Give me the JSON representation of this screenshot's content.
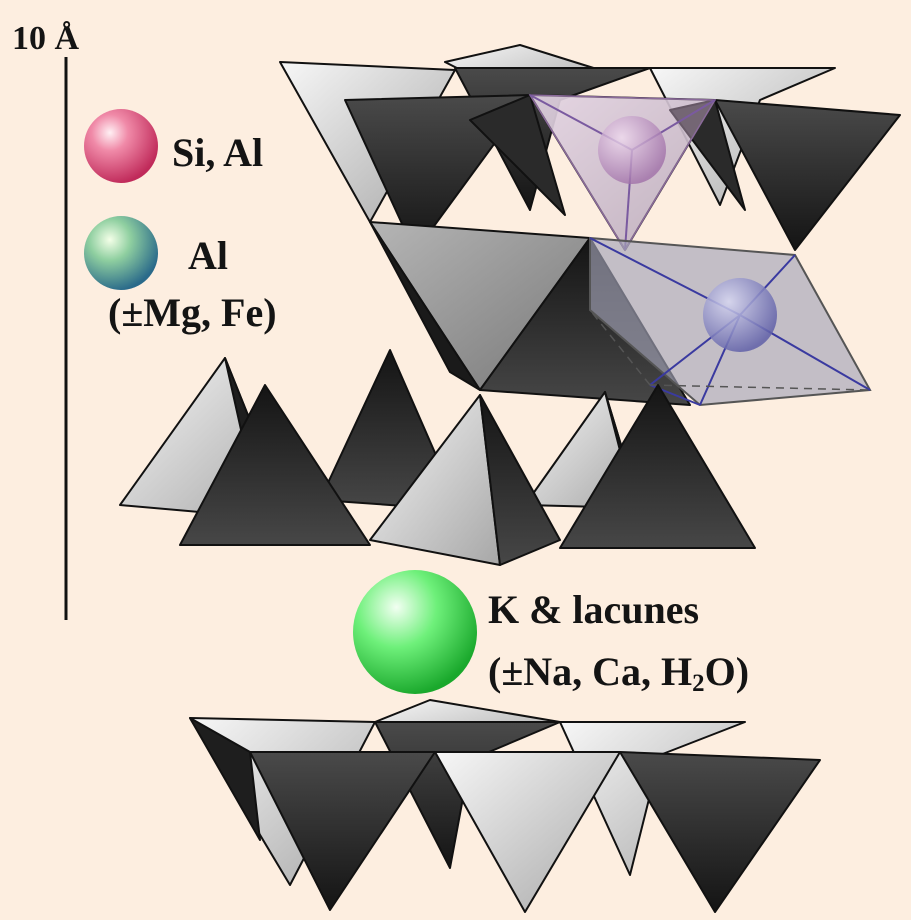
{
  "scale_bar": {
    "label": "10 Å"
  },
  "legend": {
    "si_al": {
      "label": "Si, Al",
      "color": "#e0507a"
    },
    "al": {
      "label": "Al",
      "sub_label": "(±Mg, Fe)",
      "color": "#5fae9a"
    },
    "k": {
      "label": "K & lacunes",
      "sub_label_parts": [
        "(±Na, Ca, H",
        "2",
        "O)"
      ],
      "color": "#2fd840"
    }
  },
  "colors": {
    "background": "#fdeee0",
    "tetra_dark": "#2a2a2a",
    "tetra_light": "#e2e2e2",
    "octa_gray": "#9a9a9a",
    "bond_line": "#3a3aa0"
  }
}
